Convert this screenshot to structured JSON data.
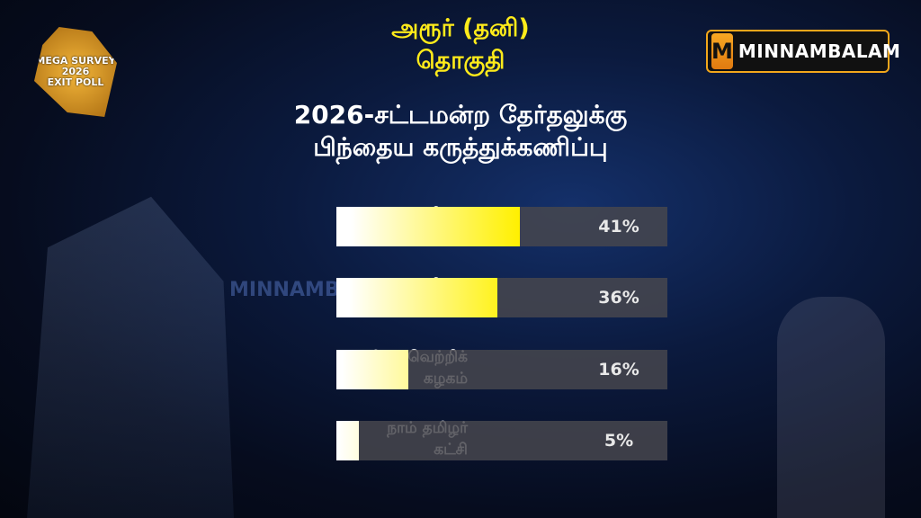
{
  "header": {
    "constituency_line1": "அரூர் (தனி)",
    "constituency_line2": "தொகுதி",
    "title_line1": "2026-சட்டமன்ற தேர்தலுக்கு",
    "title_line2": "பிந்தைய கருத்துக்கணிப்பு"
  },
  "logos": {
    "left": [
      "MEGA SURVEY",
      "2026",
      "EXIT POLL"
    ],
    "right": "MINNAMBALAM",
    "watermark": "MINNAMBALAM"
  },
  "colors": {
    "accent_yellow": "#ffeb1a",
    "bar_track": "#46464e",
    "brand_orange": "#f2a71b"
  },
  "chart_data": {
    "type": "bar",
    "orientation": "horizontal",
    "categories": [
      "திமுக கூட்டணி",
      "அதிமுக கூட்டணி",
      "தமிழக வெற்றிக் கழகம்",
      "நாம் தமிழர் கட்சி"
    ],
    "category_lines": [
      [
        "திமுக",
        "கூட்டணி"
      ],
      [
        "அதிமுக",
        "கூட்டணி"
      ],
      [
        "தமிழக வெற்றிக்",
        "கழகம்"
      ],
      [
        "நாம் தமிழர்",
        "கட்சி"
      ]
    ],
    "values": [
      41,
      36,
      16,
      5
    ],
    "data_labels": [
      "41%",
      "36%",
      "16%",
      "5%"
    ],
    "unit": "%"
  }
}
